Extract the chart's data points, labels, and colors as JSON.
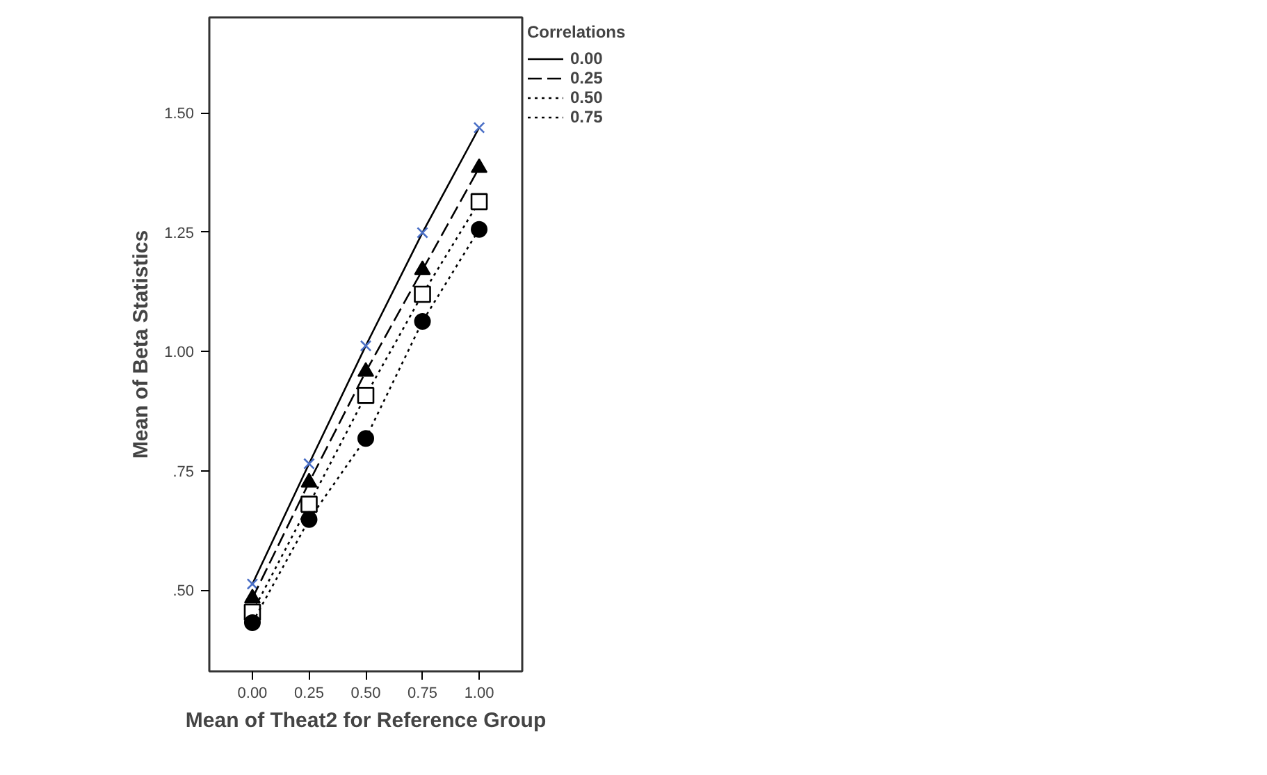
{
  "chart_data": {
    "type": "line",
    "xlabel": "Mean of Theat2 for Reference Group",
    "ylabel": "Mean of Beta Statistics",
    "legend_title": "Correlations",
    "x": [
      0,
      0.25,
      0.5,
      0.75,
      1.0
    ],
    "series": [
      {
        "name": "0.00",
        "color": "#4a6fc6",
        "marker": "cross",
        "line_style": "solid",
        "values": [
          0.513,
          0.765,
          1.012,
          1.249,
          1.469
        ]
      },
      {
        "name": "0.25",
        "color": "#000000",
        "marker": "triangle",
        "line_style": "dashed",
        "values": [
          0.483,
          0.726,
          0.958,
          1.171,
          1.385
        ]
      },
      {
        "name": "0.50",
        "color": "#000000",
        "marker": "square",
        "line_style": "dotted",
        "values": [
          0.454,
          0.68,
          0.908,
          1.12,
          1.314
        ]
      },
      {
        "name": "0.75",
        "color": "#000000",
        "marker": "circle",
        "line_style": "dotted",
        "values": [
          0.432,
          0.648,
          0.818,
          1.063,
          1.256
        ]
      }
    ],
    "xlim": [
      -0.19,
      1.19
    ],
    "ylim": [
      0.33,
      1.7
    ],
    "xticks": [
      {
        "value": 0,
        "label": "0.00"
      },
      {
        "value": 0.25,
        "label": "0.25"
      },
      {
        "value": 0.5,
        "label": "0.50"
      },
      {
        "value": 0.75,
        "label": "0.75"
      },
      {
        "value": 1.0,
        "label": "1.00"
      }
    ],
    "yticks": [
      {
        "value": 0.5,
        "label": ".50"
      },
      {
        "value": 0.75,
        "label": ".75"
      },
      {
        "value": 1.0,
        "label": "1.00"
      },
      {
        "value": 1.25,
        "label": "1.25"
      },
      {
        "value": 1.5,
        "label": "1.50"
      }
    ],
    "grid": false,
    "legend": "right"
  }
}
